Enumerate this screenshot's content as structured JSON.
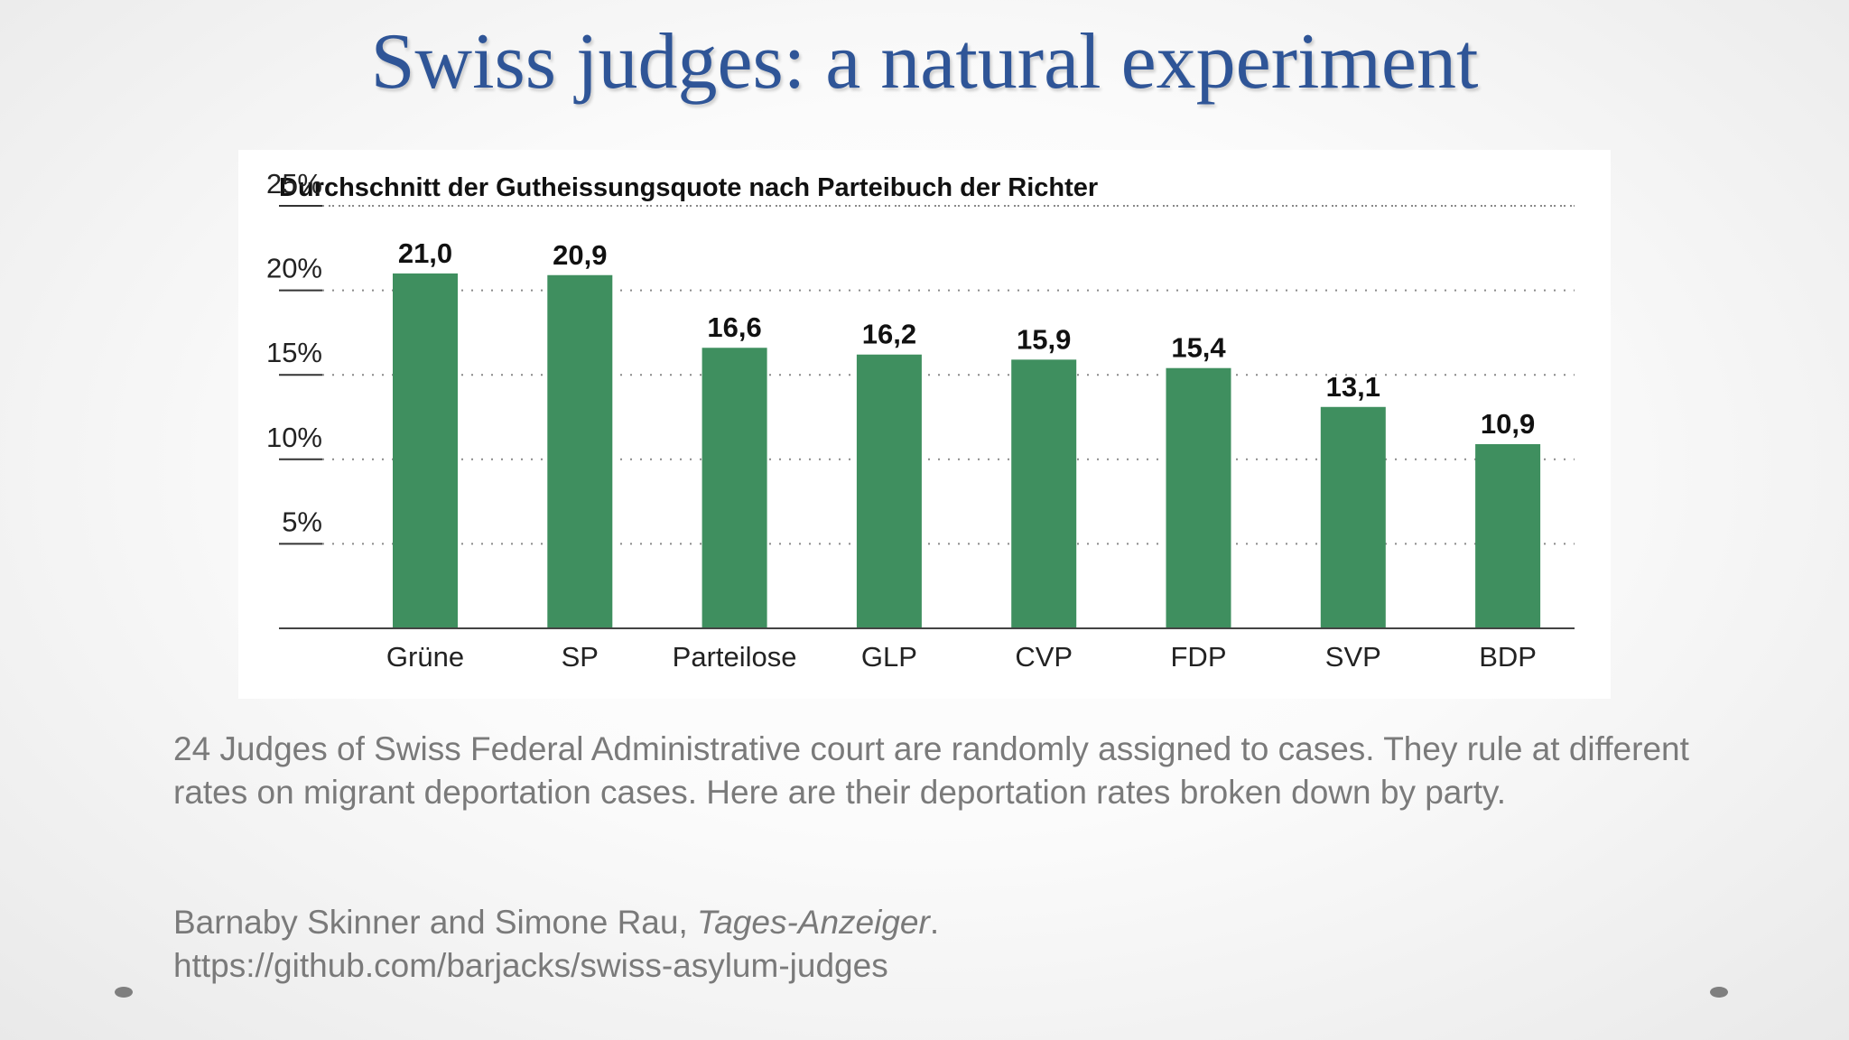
{
  "slide": {
    "title": "Swiss judges: a natural experiment",
    "caption": "24 Judges of Swiss Federal Administrative court are randomly assigned to cases. They rule at different rates on migrant deportation cases. Here are their deportation rates broken down by party.",
    "citation": {
      "authors": "Barnaby Skinner and Simone Rau, ",
      "journal": "Tages-Anzeiger",
      "period": ".",
      "url": "https://github.com/barjacks/swiss-asylum-judges"
    }
  },
  "chart_data": {
    "type": "bar",
    "title": "Durchschnitt der Gutheissungsquote nach Parteibuch der Richter",
    "categories": [
      "Grüne",
      "SP",
      "Parteilose",
      "GLP",
      "CVP",
      "FDP",
      "SVP",
      "BDP"
    ],
    "values": [
      21.0,
      20.9,
      16.6,
      16.2,
      15.9,
      15.4,
      13.1,
      10.9
    ],
    "value_labels": [
      "21,0",
      "20,9",
      "16,6",
      "16,2",
      "15,9",
      "15,4",
      "13,1",
      "10,9"
    ],
    "ylim": [
      0,
      25
    ],
    "y_ticks": [
      5,
      10,
      15,
      20,
      25
    ],
    "y_tick_labels": [
      "5%",
      "10%",
      "15%",
      "20%",
      "25%"
    ],
    "grid": "dotted horizontal",
    "bar_color": "#3f8f5f",
    "xlabel": "",
    "ylabel": ""
  }
}
